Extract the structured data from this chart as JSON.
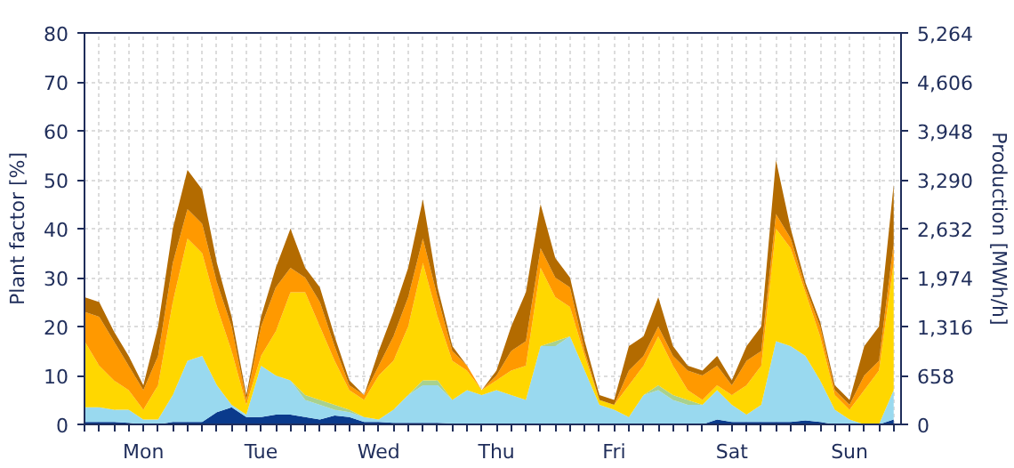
{
  "chart_data": {
    "type": "area",
    "stacked": true,
    "ylabel": "Plant factor [%]",
    "y2label": "Production [MWh/h]",
    "categories": [
      null,
      null,
      null,
      null,
      "Mon",
      null,
      null,
      null,
      null,
      null,
      null,
      null,
      "Tue",
      null,
      null,
      null,
      null,
      null,
      null,
      null,
      "Wed",
      null,
      null,
      null,
      null,
      null,
      null,
      null,
      "Thu",
      null,
      null,
      null,
      null,
      null,
      null,
      null,
      "Fri",
      null,
      null,
      null,
      null,
      null,
      null,
      null,
      "Sat",
      null,
      null,
      null,
      null,
      null,
      null,
      null,
      "Sun",
      null,
      null,
      null
    ],
    "ylim": [
      0,
      80
    ],
    "yticks": [
      0,
      10,
      20,
      30,
      40,
      50,
      60,
      70,
      80
    ],
    "y2lim": [
      0,
      5264
    ],
    "y2ticks": [
      0,
      658,
      {
        "value": 1316,
        "label": "1,316"
      },
      {
        "value": 1974,
        "label": "1,974"
      },
      {
        "value": 2632,
        "label": "2,632"
      },
      {
        "value": 3290,
        "label": "3,290"
      },
      {
        "value": 3948,
        "label": "3,948"
      },
      {
        "value": 4606,
        "label": "4,606"
      },
      {
        "value": 5264,
        "label": "5,264"
      }
    ],
    "grid": true,
    "series": [
      {
        "color": "#0a3a8c",
        "values": [
          0.5,
          0.5,
          0.5,
          0.3,
          0,
          0,
          0.5,
          0.5,
          0.5,
          2.5,
          3.5,
          1.5,
          1.5,
          2,
          2,
          1.5,
          1,
          1.8,
          1.5,
          0.5,
          0.5,
          0.3,
          0.3,
          0.3,
          0.3,
          0.2,
          0.2,
          0,
          0,
          0,
          0,
          0,
          0,
          0,
          0,
          0,
          0,
          0,
          0,
          0,
          0,
          0,
          0,
          1,
          0.5,
          0.5,
          0.5,
          0.5,
          0.5,
          0.8,
          0.5,
          0,
          0,
          0,
          0,
          1
        ]
      },
      {
        "color": "#99d9ef",
        "values": [
          3,
          3,
          2.5,
          2.7,
          1,
          1,
          5.5,
          12.5,
          13.5,
          5.5,
          0.5,
          0.5,
          10.5,
          8,
          7,
          3.5,
          3,
          1.2,
          1,
          1,
          0.5,
          2.7,
          5.7,
          7.7,
          7.7,
          4.8,
          6.8,
          6,
          7,
          6,
          5,
          16,
          16,
          18,
          11,
          4,
          3,
          1.5,
          6,
          7,
          5,
          4,
          4,
          6,
          3.5,
          1.5,
          3.5,
          16.5,
          15.5,
          13.2,
          8.5,
          3,
          1,
          0,
          0,
          6
        ]
      },
      {
        "color": "#a9d18e",
        "values": [
          null,
          null,
          null,
          null,
          null,
          null,
          null,
          null,
          null,
          null,
          null,
          null,
          null,
          null,
          0,
          1,
          1,
          1,
          0.5,
          0,
          null,
          null,
          0,
          1,
          1,
          0,
          null,
          null,
          null,
          null,
          null,
          0,
          1,
          0,
          null,
          null,
          null,
          null,
          0,
          1,
          1,
          1,
          0,
          null,
          null,
          null,
          null,
          null,
          null,
          null,
          null,
          null,
          null,
          null,
          null,
          null
        ]
      },
      {
        "color": "#ffd700",
        "values": [
          13.5,
          8.5,
          6,
          4,
          2,
          7,
          19,
          25,
          21,
          16,
          11,
          2,
          2,
          9,
          18,
          21,
          15,
          9,
          4,
          3.5,
          9,
          10,
          14,
          24,
          13,
          8,
          4,
          1,
          2,
          5,
          7,
          16,
          9,
          6,
          3,
          1,
          1,
          6.5,
          6,
          10,
          6,
          2,
          1,
          1,
          2,
          6,
          8,
          23,
          20,
          13,
          9,
          3,
          2,
          7,
          11,
          26
        ]
      },
      {
        "color": "#ff9900",
        "values": [
          6,
          10,
          8,
          5,
          4,
          6,
          8,
          6,
          6,
          5,
          5,
          1,
          6,
          9,
          5,
          3,
          5,
          3,
          1,
          1,
          2,
          5,
          6,
          5,
          4,
          2,
          1,
          0,
          1,
          4,
          5,
          4,
          4,
          4,
          1,
          0,
          0,
          3,
          2,
          2,
          2,
          4,
          5,
          4,
          2,
          5,
          3,
          3,
          2,
          1,
          2,
          1,
          1,
          3,
          2,
          4
        ]
      },
      {
        "color": "#b36b00",
        "values": [
          3,
          3,
          2,
          2,
          1,
          6,
          7,
          8,
          7,
          4,
          2,
          1,
          2,
          4,
          8,
          2,
          3,
          2,
          1,
          0,
          3,
          5,
          6,
          8,
          2,
          1,
          0,
          0,
          1,
          5,
          10,
          9,
          4,
          2,
          2,
          1,
          1,
          5,
          4,
          6,
          2,
          1,
          1,
          2,
          1,
          3,
          5,
          11,
          2,
          1,
          1,
          1,
          1,
          6,
          7,
          12
        ]
      }
    ]
  }
}
